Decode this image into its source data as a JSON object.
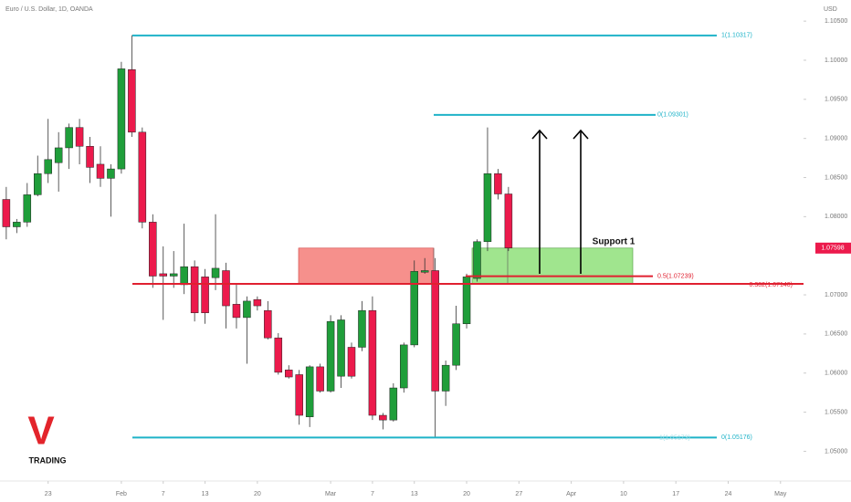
{
  "chart_data": {
    "type": "candlestick",
    "title": "Euro / U.S. Dollar, 1D, OANDA",
    "currency": "USD",
    "up_color": "#1f9e3a",
    "down_color": "#ec1a4c",
    "x": [
      -4,
      -3,
      -2,
      -1,
      0,
      1,
      2,
      3,
      4,
      5,
      6,
      7,
      8,
      9,
      10,
      11,
      12,
      13,
      14,
      15,
      16,
      17,
      18,
      19,
      20,
      21,
      22,
      23,
      24,
      25,
      26,
      27,
      28,
      29,
      30,
      31,
      32,
      33,
      34,
      35,
      36,
      37,
      38,
      39,
      40,
      41,
      42,
      43,
      44
    ],
    "open": [
      1.0822,
      1.0787,
      1.0793,
      1.0828,
      1.0855,
      1.0869,
      1.0888,
      1.0914,
      1.089,
      1.0867,
      1.0849,
      1.0861,
      1.0988,
      1.0908,
      1.0793,
      1.0727,
      1.0724,
      1.0713,
      1.0736,
      1.0723,
      1.0722,
      1.0731,
      1.0688,
      1.0671,
      1.0694,
      1.068,
      1.0645,
      1.0604,
      1.0598,
      1.0544,
      1.0608,
      1.0577,
      1.0596,
      1.0633,
      1.0633,
      1.068,
      1.0546,
      1.054,
      1.0581,
      1.0636,
      1.0729,
      1.0731,
      1.0577,
      1.061,
      1.0663,
      1.0721,
      1.0768,
      1.0855,
      1.0829
    ],
    "high": [
      1.0838,
      1.0797,
      1.0843,
      1.0878,
      1.0925,
      1.0908,
      1.0919,
      1.0925,
      1.0902,
      1.089,
      1.0867,
      1.0998,
      1.1032,
      1.0914,
      1.0803,
      1.0762,
      1.0756,
      1.0791,
      1.0744,
      1.0733,
      1.0803,
      1.0741,
      1.0715,
      1.0698,
      1.0698,
      1.0692,
      1.0651,
      1.061,
      1.0604,
      1.061,
      1.0612,
      1.0674,
      1.0674,
      1.0639,
      1.0692,
      1.0698,
      1.0549,
      1.0587,
      1.0639,
      1.0744,
      1.0747,
      1.0747,
      1.0616,
      1.0686,
      1.0727,
      1.0771,
      1.0914,
      1.0861,
      1.0838
    ],
    "low": [
      1.0771,
      1.0779,
      1.0787,
      1.0826,
      1.0843,
      1.0832,
      1.0861,
      1.0867,
      1.0843,
      1.0838,
      1.08,
      1.0855,
      1.0902,
      1.0785,
      1.0709,
      1.0668,
      1.0709,
      1.0701,
      1.0666,
      1.0663,
      1.0706,
      1.0657,
      1.0657,
      1.0612,
      1.068,
      1.0643,
      1.0598,
      1.0593,
      1.0534,
      1.0531,
      1.0575,
      1.0575,
      1.0581,
      1.0593,
      1.0628,
      1.054,
      1.0528,
      1.0538,
      1.0575,
      1.0633,
      1.0727,
      1.0517,
      1.0558,
      1.0604,
      1.0657,
      1.0717,
      1.0756,
      1.0822,
      1.0756
    ],
    "close": [
      1.0787,
      1.0793,
      1.0828,
      1.0855,
      1.0873,
      1.0888,
      1.0914,
      1.089,
      1.0863,
      1.0849,
      1.0861,
      1.0989,
      1.0908,
      1.0793,
      1.0724,
      1.0724,
      1.0727,
      1.0736,
      1.0677,
      1.0677,
      1.0734,
      1.0686,
      1.0671,
      1.0692,
      1.0686,
      1.0645,
      1.0601,
      1.0595,
      1.0546,
      1.0608,
      1.0577,
      1.0666,
      1.0668,
      1.0596,
      1.068,
      1.0546,
      1.054,
      1.0581,
      1.0636,
      1.073,
      1.0731,
      1.0577,
      1.061,
      1.0663,
      1.0723,
      1.0768,
      1.0855,
      1.0829,
      1.076
    ],
    "xlim": [
      -4.6,
      72.2
    ],
    "ylim": [
      1.0462,
      1.1077
    ],
    "xticks": [
      {
        "value": 0,
        "label": "23"
      },
      {
        "value": 7,
        "label": "Feb"
      },
      {
        "value": 11,
        "label": "7"
      },
      {
        "value": 15,
        "label": "13"
      },
      {
        "value": 20,
        "label": "20"
      },
      {
        "value": 27,
        "label": "Mar"
      },
      {
        "value": 31,
        "label": "7"
      },
      {
        "value": 35,
        "label": "13"
      },
      {
        "value": 40,
        "label": "20"
      },
      {
        "value": 45,
        "label": "27"
      },
      {
        "value": 50,
        "label": "Apr"
      },
      {
        "value": 55,
        "label": "10"
      },
      {
        "value": 60,
        "label": "17"
      },
      {
        "value": 65,
        "label": "24"
      },
      {
        "value": 70,
        "label": "May"
      }
    ],
    "yticks": [
      {
        "value": 1.105,
        "label": "1.10500"
      },
      {
        "value": 1.1,
        "label": "1.10000"
      },
      {
        "value": 1.095,
        "label": "1.09500"
      },
      {
        "value": 1.09,
        "label": "1.09000"
      },
      {
        "value": 1.085,
        "label": "1.08500"
      },
      {
        "value": 1.08,
        "label": "1.08000"
      },
      {
        "value": 1.07,
        "label": "1.07000"
      },
      {
        "value": 1.065,
        "label": "1.06500"
      },
      {
        "value": 1.06,
        "label": "1.06000"
      },
      {
        "value": 1.055,
        "label": "1.05500"
      },
      {
        "value": 1.05,
        "label": "1.05000"
      }
    ],
    "last_price": {
      "value": 1.07598,
      "label": "1.07598"
    },
    "levels": [
      {
        "label": "1(1.10317)",
        "value": 1.10317,
        "color": "#1fb3c8"
      },
      {
        "label": "0(1.09301)",
        "value": 1.09301,
        "color": "#1fb3c8"
      },
      {
        "label": "0.5(1.07239)",
        "value": 1.07239,
        "color": "#e02030"
      },
      {
        "label": "0.382(1.07140)",
        "value": 1.0714,
        "color": "#e02030"
      },
      {
        "label": "0(1.05176)",
        "value": 1.05176,
        "color": "#1fb3c8"
      },
      {
        "label": "1(1.05173)",
        "value": 1.05173,
        "color": "#9fdde6"
      }
    ],
    "annotation": "Support 1",
    "logo": {
      "mark": "V",
      "text": "TRADING"
    }
  }
}
